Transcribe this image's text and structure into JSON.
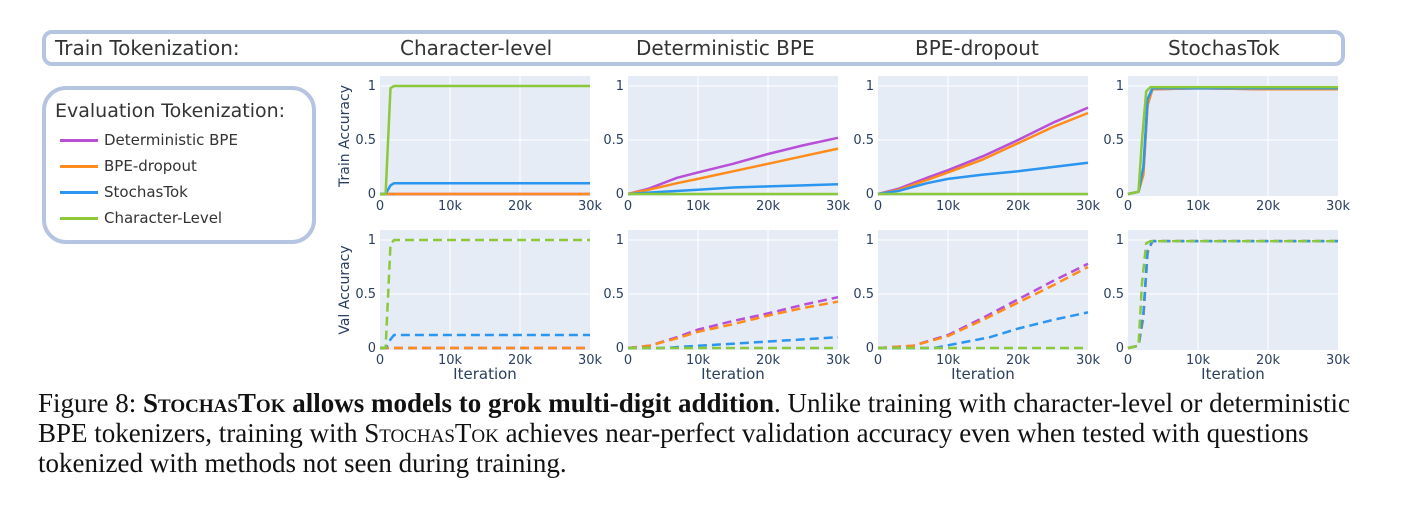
{
  "header": {
    "train_label": "Train Tokenization:",
    "columns": [
      "Character-level",
      "Deterministic BPE",
      "BPE-dropout",
      "StochasTok"
    ]
  },
  "legend": {
    "title": "Evaluation Tokenization:",
    "items": [
      {
        "label": "Deterministic BPE",
        "color": "#b84fd6"
      },
      {
        "label": "BPE-dropout",
        "color": "#ff8c1a"
      },
      {
        "label": "StochasTok",
        "color": "#2b95f0"
      },
      {
        "label": "Character-Level",
        "color": "#8bc83a"
      }
    ]
  },
  "axes": {
    "row_labels": [
      "Train Accuracy",
      "Val Accuracy"
    ],
    "xlabel": "Iteration",
    "xticks": [
      "0",
      "10k",
      "20k",
      "30k"
    ],
    "yticks": [
      "0",
      "0.5",
      "1"
    ]
  },
  "caption": {
    "figure_label": "Figure 8:",
    "bold_sc": "StochasTok",
    "bold_rest": " allows models to grok multi-digit addition",
    "text1": ". Unlike training with character-level or deterministic BPE tokenizers, training with ",
    "sc": "StochasTok",
    "text2": " achieves near-perfect validation accuracy even when tested with questions tokenized with methods not seen during training."
  },
  "chart_data": {
    "type": "line",
    "x_range": [
      0,
      30000
    ],
    "y_range": [
      0,
      1
    ],
    "grid": true,
    "rows": [
      "Train Accuracy",
      "Val Accuracy"
    ],
    "columns": [
      "Character-level",
      "Deterministic BPE",
      "BPE-dropout",
      "StochasTok"
    ],
    "series_names": [
      "Deterministic BPE",
      "BPE-dropout",
      "StochasTok",
      "Character-Level"
    ],
    "panels": [
      {
        "row": "Train Accuracy",
        "column": "Character-level",
        "series": [
          {
            "name": "Deterministic BPE",
            "x": [
              0,
              30000
            ],
            "y": [
              0.0,
              0.0
            ]
          },
          {
            "name": "BPE-dropout",
            "x": [
              0,
              30000
            ],
            "y": [
              0.0,
              0.0
            ]
          },
          {
            "name": "StochasTok",
            "x": [
              0,
              800,
              1500,
              2000,
              10000,
              20000,
              30000
            ],
            "y": [
              0.0,
              0.0,
              0.08,
              0.1,
              0.1,
              0.1,
              0.1
            ]
          },
          {
            "name": "Character-Level",
            "x": [
              0,
              800,
              1500,
              2000,
              10000,
              20000,
              30000
            ],
            "y": [
              0.0,
              0.0,
              0.98,
              1.0,
              1.0,
              1.0,
              1.0
            ]
          }
        ]
      },
      {
        "row": "Train Accuracy",
        "column": "Deterministic BPE",
        "series": [
          {
            "name": "Deterministic BPE",
            "x": [
              0,
              3000,
              7000,
              10000,
              15000,
              20000,
              25000,
              30000
            ],
            "y": [
              0.0,
              0.05,
              0.15,
              0.2,
              0.28,
              0.37,
              0.45,
              0.52
            ]
          },
          {
            "name": "BPE-dropout",
            "x": [
              0,
              3000,
              7000,
              10000,
              15000,
              20000,
              25000,
              30000
            ],
            "y": [
              0.0,
              0.04,
              0.1,
              0.14,
              0.21,
              0.28,
              0.35,
              0.42
            ]
          },
          {
            "name": "StochasTok",
            "x": [
              0,
              5000,
              10000,
              15000,
              20000,
              25000,
              30000
            ],
            "y": [
              0.0,
              0.02,
              0.04,
              0.06,
              0.07,
              0.08,
              0.09
            ]
          },
          {
            "name": "Character-Level",
            "x": [
              0,
              30000
            ],
            "y": [
              0.0,
              0.0
            ]
          }
        ]
      },
      {
        "row": "Train Accuracy",
        "column": "BPE-dropout",
        "series": [
          {
            "name": "Deterministic BPE",
            "x": [
              0,
              3000,
              7000,
              10000,
              15000,
              20000,
              25000,
              30000
            ],
            "y": [
              0.0,
              0.05,
              0.15,
              0.22,
              0.35,
              0.5,
              0.66,
              0.8
            ]
          },
          {
            "name": "BPE-dropout",
            "x": [
              0,
              3000,
              7000,
              10000,
              15000,
              20000,
              25000,
              30000
            ],
            "y": [
              0.0,
              0.04,
              0.13,
              0.2,
              0.32,
              0.47,
              0.62,
              0.75
            ]
          },
          {
            "name": "StochasTok",
            "x": [
              0,
              3000,
              7000,
              10000,
              15000,
              20000,
              25000,
              30000
            ],
            "y": [
              0.0,
              0.03,
              0.1,
              0.14,
              0.18,
              0.21,
              0.25,
              0.29
            ]
          },
          {
            "name": "Character-Level",
            "x": [
              0,
              30000
            ],
            "y": [
              0.0,
              0.0
            ]
          }
        ]
      },
      {
        "row": "Train Accuracy",
        "column": "StochasTok",
        "series": [
          {
            "name": "Deterministic BPE",
            "x": [
              0,
              1500,
              2200,
              2800,
              3500,
              10000,
              20000,
              30000
            ],
            "y": [
              0.0,
              0.02,
              0.2,
              0.85,
              0.97,
              0.98,
              0.97,
              0.97
            ]
          },
          {
            "name": "BPE-dropout",
            "x": [
              0,
              1500,
              2200,
              2800,
              3500,
              10000,
              20000,
              30000
            ],
            "y": [
              0.0,
              0.02,
              0.18,
              0.82,
              0.97,
              0.98,
              0.97,
              0.97
            ]
          },
          {
            "name": "StochasTok",
            "x": [
              0,
              1500,
              2200,
              2800,
              3500,
              10000,
              20000,
              30000
            ],
            "y": [
              0.0,
              0.02,
              0.25,
              0.88,
              0.98,
              0.98,
              0.98,
              0.98
            ]
          },
          {
            "name": "Character-Level",
            "x": [
              0,
              1500,
              2000,
              2600,
              3200,
              10000,
              20000,
              30000
            ],
            "y": [
              0.0,
              0.02,
              0.5,
              0.95,
              0.99,
              0.99,
              0.99,
              0.99
            ]
          }
        ]
      },
      {
        "row": "Val Accuracy",
        "column": "Character-level",
        "series": [
          {
            "name": "Deterministic BPE",
            "x": [
              0,
              30000
            ],
            "y": [
              0.0,
              0.0
            ]
          },
          {
            "name": "BPE-dropout",
            "x": [
              0,
              30000
            ],
            "y": [
              0.0,
              0.0
            ]
          },
          {
            "name": "StochasTok",
            "x": [
              0,
              800,
              1500,
              2000,
              10000,
              20000,
              30000
            ],
            "y": [
              0.0,
              0.0,
              0.08,
              0.12,
              0.12,
              0.12,
              0.12
            ]
          },
          {
            "name": "Character-Level",
            "x": [
              0,
              800,
              1500,
              2000,
              10000,
              20000,
              30000
            ],
            "y": [
              0.0,
              0.0,
              0.96,
              1.0,
              1.0,
              1.0,
              1.0
            ]
          }
        ]
      },
      {
        "row": "Val Accuracy",
        "column": "Deterministic BPE",
        "series": [
          {
            "name": "Deterministic BPE",
            "x": [
              0,
              3000,
              7000,
              10000,
              15000,
              20000,
              25000,
              30000
            ],
            "y": [
              0.0,
              0.02,
              0.1,
              0.17,
              0.25,
              0.32,
              0.4,
              0.47
            ]
          },
          {
            "name": "BPE-dropout",
            "x": [
              0,
              3000,
              7000,
              10000,
              15000,
              20000,
              25000,
              30000
            ],
            "y": [
              0.0,
              0.02,
              0.09,
              0.15,
              0.22,
              0.3,
              0.37,
              0.43
            ]
          },
          {
            "name": "StochasTok",
            "x": [
              0,
              5000,
              10000,
              15000,
              20000,
              25000,
              30000
            ],
            "y": [
              0.0,
              0.0,
              0.02,
              0.04,
              0.06,
              0.08,
              0.1
            ]
          },
          {
            "name": "Character-Level",
            "x": [
              0,
              30000
            ],
            "y": [
              0.0,
              0.0
            ]
          }
        ]
      },
      {
        "row": "Val Accuracy",
        "column": "BPE-dropout",
        "series": [
          {
            "name": "Deterministic BPE",
            "x": [
              0,
              5000,
              10000,
              15000,
              20000,
              25000,
              30000
            ],
            "y": [
              0.0,
              0.02,
              0.12,
              0.28,
              0.45,
              0.62,
              0.78
            ]
          },
          {
            "name": "BPE-dropout",
            "x": [
              0,
              5000,
              10000,
              15000,
              20000,
              25000,
              30000
            ],
            "y": [
              0.0,
              0.02,
              0.11,
              0.26,
              0.42,
              0.58,
              0.75
            ]
          },
          {
            "name": "StochasTok",
            "x": [
              0,
              8000,
              12000,
              16000,
              20000,
              25000,
              30000
            ],
            "y": [
              0.0,
              0.0,
              0.05,
              0.1,
              0.18,
              0.26,
              0.33
            ]
          },
          {
            "name": "Character-Level",
            "x": [
              0,
              30000
            ],
            "y": [
              0.0,
              0.0
            ]
          }
        ]
      },
      {
        "row": "Val Accuracy",
        "column": "StochasTok",
        "series": [
          {
            "name": "Deterministic BPE",
            "x": [
              0,
              1500,
              2200,
              2800,
              3500,
              10000,
              20000,
              30000
            ],
            "y": [
              0.0,
              0.02,
              0.3,
              0.9,
              0.99,
              0.99,
              0.99,
              0.99
            ]
          },
          {
            "name": "BPE-dropout",
            "x": [
              0,
              1500,
              2200,
              2800,
              3500,
              10000,
              20000,
              30000
            ],
            "y": [
              0.0,
              0.02,
              0.28,
              0.88,
              0.99,
              0.99,
              0.99,
              0.99
            ]
          },
          {
            "name": "StochasTok",
            "x": [
              0,
              1500,
              2200,
              2800,
              3500,
              10000,
              20000,
              30000
            ],
            "y": [
              0.0,
              0.02,
              0.32,
              0.9,
              0.99,
              0.99,
              0.99,
              0.99
            ]
          },
          {
            "name": "Character-Level",
            "x": [
              0,
              1500,
              2000,
              2600,
              3200,
              10000,
              20000,
              30000
            ],
            "y": [
              0.0,
              0.02,
              0.6,
              0.97,
              0.99,
              0.99,
              0.99,
              0.99
            ]
          }
        ]
      }
    ]
  }
}
